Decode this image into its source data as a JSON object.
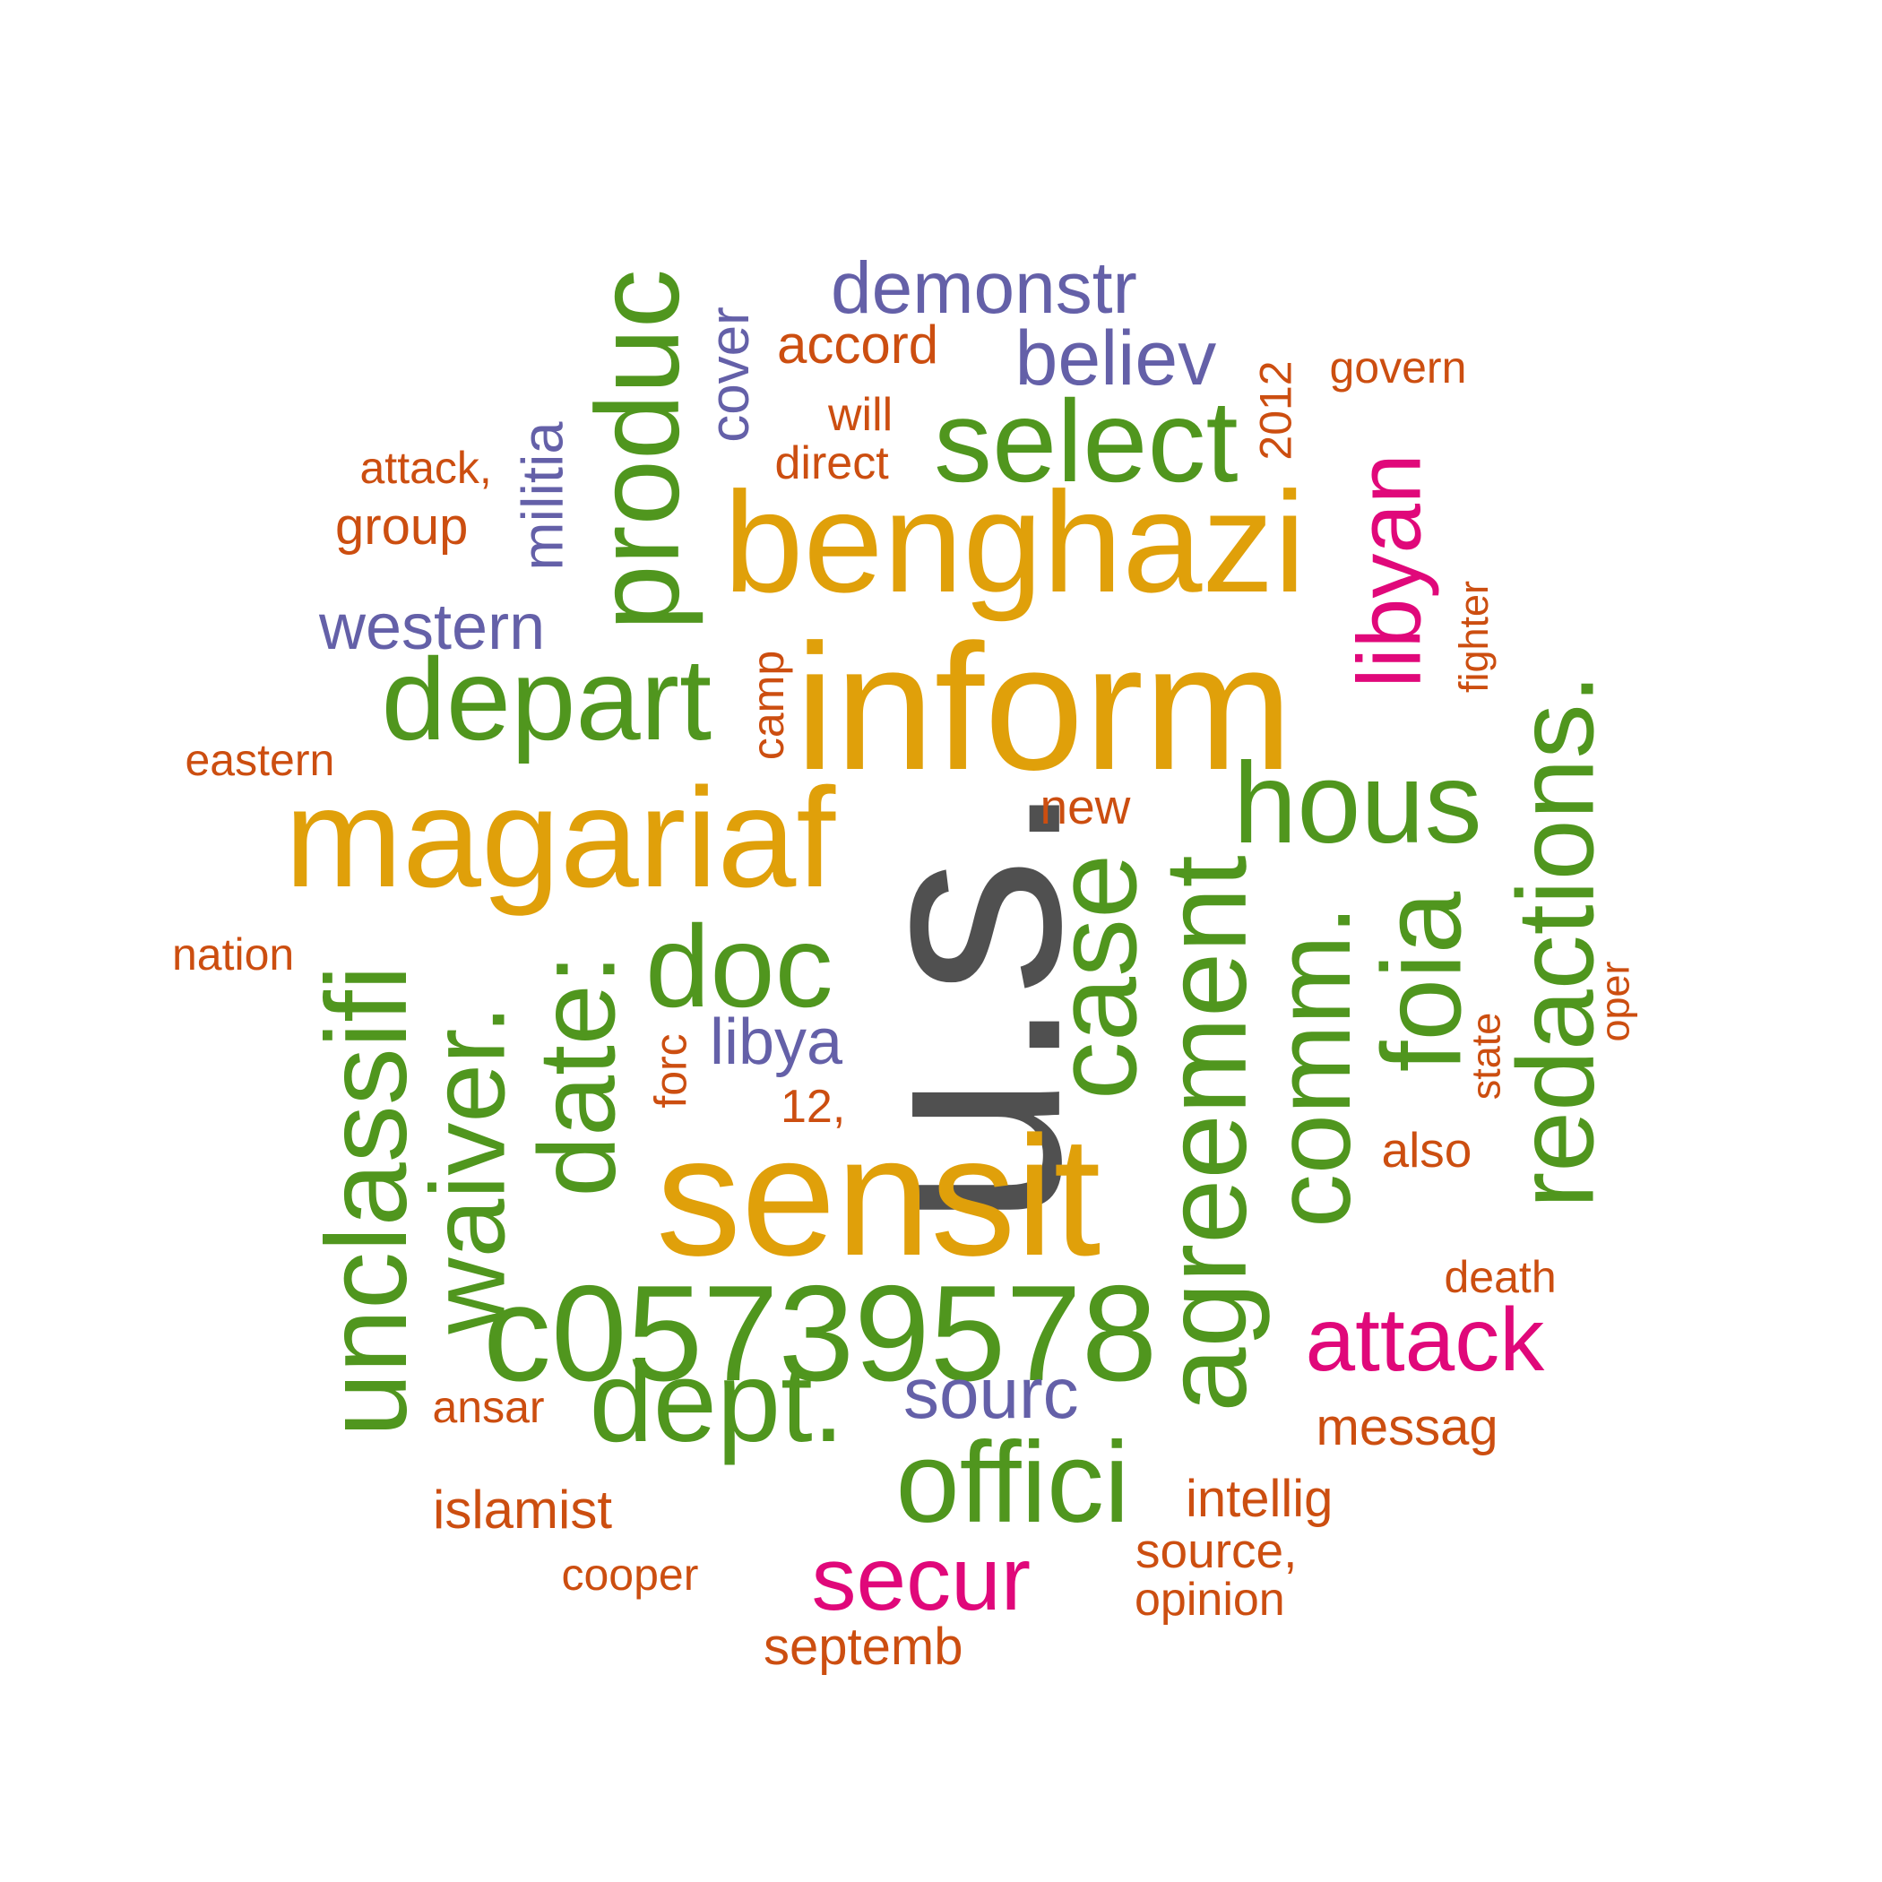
{
  "palette": {
    "gray": "#505050",
    "gold": "#e0a00a",
    "green": "#50961e",
    "purple": "#6460a8",
    "magenta": "#e0087a",
    "orange": "#cc4e10"
  },
  "words": [
    {
      "text": "u.s.",
      "color": "gray"
    },
    {
      "text": "inform",
      "color": "gold"
    },
    {
      "text": "sensit",
      "color": "gold"
    },
    {
      "text": "benghazi",
      "color": "gold"
    },
    {
      "text": "magariaf",
      "color": "gold"
    },
    {
      "text": "c05739578",
      "color": "green"
    },
    {
      "text": "depart",
      "color": "green"
    },
    {
      "text": "select",
      "color": "green"
    },
    {
      "text": "produc",
      "color": "green"
    },
    {
      "text": "hous",
      "color": "green"
    },
    {
      "text": "doc",
      "color": "green"
    },
    {
      "text": "dept.",
      "color": "green"
    },
    {
      "text": "offici",
      "color": "green"
    },
    {
      "text": "case",
      "color": "green"
    },
    {
      "text": "agreement",
      "color": "green"
    },
    {
      "text": "comm.",
      "color": "green"
    },
    {
      "text": "foia",
      "color": "green"
    },
    {
      "text": "redactions.",
      "color": "green"
    },
    {
      "text": "unclassifi",
      "color": "green"
    },
    {
      "text": "waiver.",
      "color": "green"
    },
    {
      "text": "date:",
      "color": "green"
    },
    {
      "text": "libyan",
      "color": "magenta"
    },
    {
      "text": "attack",
      "color": "magenta"
    },
    {
      "text": "secur",
      "color": "magenta"
    },
    {
      "text": "demonstr",
      "color": "purple"
    },
    {
      "text": "believ",
      "color": "purple"
    },
    {
      "text": "western",
      "color": "purple"
    },
    {
      "text": "libya",
      "color": "purple"
    },
    {
      "text": "sourc",
      "color": "purple"
    },
    {
      "text": "cover",
      "color": "purple"
    },
    {
      "text": "militia",
      "color": "purple"
    },
    {
      "text": "accord",
      "color": "orange"
    },
    {
      "text": "will",
      "color": "orange"
    },
    {
      "text": "direct",
      "color": "orange"
    },
    {
      "text": "attack,",
      "color": "orange"
    },
    {
      "text": "group",
      "color": "orange"
    },
    {
      "text": "govern",
      "color": "orange"
    },
    {
      "text": "2012",
      "color": "orange"
    },
    {
      "text": "fighter",
      "color": "orange"
    },
    {
      "text": "camp",
      "color": "orange"
    },
    {
      "text": "eastern",
      "color": "orange"
    },
    {
      "text": "new",
      "color": "orange"
    },
    {
      "text": "nation",
      "color": "orange"
    },
    {
      "text": "forc",
      "color": "orange"
    },
    {
      "text": "12,",
      "color": "orange"
    },
    {
      "text": "oper",
      "color": "orange"
    },
    {
      "text": "state",
      "color": "orange"
    },
    {
      "text": "also",
      "color": "orange"
    },
    {
      "text": "death",
      "color": "orange"
    },
    {
      "text": "messag",
      "color": "orange"
    },
    {
      "text": "ansar",
      "color": "orange"
    },
    {
      "text": "intellig",
      "color": "orange"
    },
    {
      "text": "islamist",
      "color": "orange"
    },
    {
      "text": "source,",
      "color": "orange"
    },
    {
      "text": "cooper",
      "color": "orange"
    },
    {
      "text": "opinion",
      "color": "orange"
    },
    {
      "text": "septemb",
      "color": "orange"
    }
  ]
}
